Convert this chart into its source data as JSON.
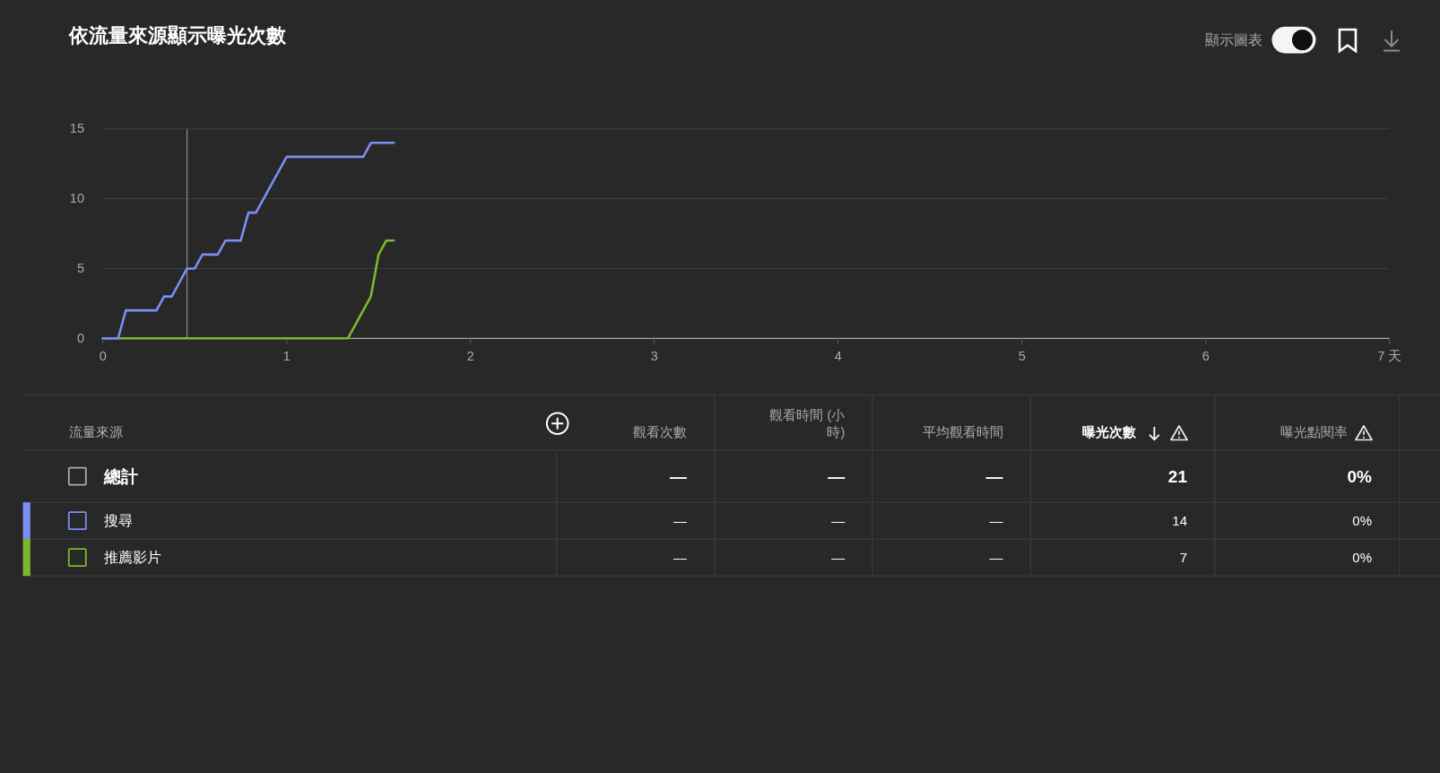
{
  "chart_data": [
    {
      "type": "line",
      "title": "依流量來源顯示曝光次數",
      "annotations": [
        "顯示圖表"
      ],
      "grid": "y",
      "line_style": "solid",
      "xlim": [
        0,
        7
      ],
      "xticks": [
        0,
        1,
        2,
        3,
        4,
        5,
        6,
        {
          "value": 7,
          "label": "7 天"
        }
      ],
      "ylim": [
        0,
        15
      ],
      "yticks": [
        0,
        5,
        10,
        15
      ],
      "ref_lines": [
        {
          "axis": "x",
          "value": 0.458,
          "color": "#8c8c8c"
        }
      ],
      "series": [
        {
          "color": "#7a8ef4",
          "x": [
            0,
            0.083,
            0.125,
            0.292,
            0.333,
            0.375,
            0.458,
            0.5,
            0.542,
            0.625,
            0.667,
            0.75,
            0.792,
            0.833,
            1,
            1.417,
            1.458,
            1.583
          ],
          "values": [
            0,
            0,
            2,
            2,
            3,
            3,
            5,
            5,
            6,
            6,
            7,
            7,
            9,
            9,
            13,
            13,
            14,
            14
          ]
        },
        {
          "color": "#7cb82f",
          "x": [
            0,
            1.333,
            1.458,
            1.5,
            1.542,
            1.583
          ],
          "values": [
            0,
            0,
            3,
            6,
            7,
            7
          ]
        }
      ]
    },
    {
      "type": "other",
      "ylabel": "流量來源",
      "categories": [
        "總計",
        "搜尋",
        "推薦影片"
      ],
      "colors": [
        null,
        "#7a8ef4",
        "#7cb82f"
      ],
      "data_labels": true,
      "series": [
        {
          "name": "觀看次數",
          "values": [
            null,
            null,
            null
          ],
          "value_labels": [
            "—",
            "—",
            "—"
          ]
        },
        {
          "name": "觀看時間 (小時)",
          "values": [
            null,
            null,
            null
          ],
          "value_labels": [
            "—",
            "—",
            "—"
          ]
        },
        {
          "name": "平均觀看時間",
          "values": [
            null,
            null,
            null
          ],
          "value_labels": [
            "—",
            "—",
            "—"
          ]
        },
        {
          "name": "曝光次數",
          "values": [
            21,
            14,
            7
          ]
        },
        {
          "name": "曝光點閱率",
          "values": [
            null,
            null,
            null
          ],
          "value_labels": [
            "0%",
            "0%",
            "0%"
          ]
        }
      ]
    }
  ]
}
